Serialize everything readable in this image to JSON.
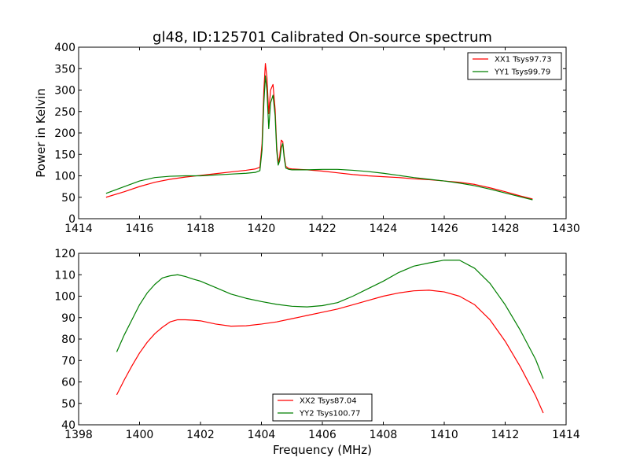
{
  "colors": {
    "xx": "#ff0000",
    "yy": "#007f00"
  },
  "chart_data": [
    {
      "type": "line",
      "title": "gl48, ID:125701 Calibrated On-source spectrum",
      "xlabel": "",
      "ylabel": "Power in Kelvin",
      "xlim": [
        1414,
        1430
      ],
      "ylim": [
        0,
        400
      ],
      "xticks": [
        1414,
        1416,
        1418,
        1420,
        1422,
        1424,
        1426,
        1428,
        1430
      ],
      "yticks": [
        0,
        50,
        100,
        150,
        200,
        250,
        300,
        350,
        400
      ],
      "legend": "top-right",
      "grid": false,
      "series": [
        {
          "name": "XX1 Tsys97.73",
          "color": "#ff0000",
          "x": [
            1414.9,
            1415.5,
            1416.0,
            1416.5,
            1417.0,
            1417.5,
            1418.0,
            1418.5,
            1419.0,
            1419.5,
            1419.8,
            1419.95,
            1420.02,
            1420.08,
            1420.13,
            1420.18,
            1420.24,
            1420.3,
            1420.38,
            1420.45,
            1420.5,
            1420.55,
            1420.6,
            1420.65,
            1420.7,
            1420.75,
            1420.8,
            1420.9,
            1421.0,
            1421.5,
            1422.0,
            1422.5,
            1423.0,
            1423.5,
            1424.0,
            1424.5,
            1425.0,
            1425.5,
            1426.0,
            1426.5,
            1427.0,
            1427.5,
            1428.0,
            1428.5,
            1428.9
          ],
          "y": [
            50,
            63,
            75,
            85,
            92,
            97,
            101,
            105,
            109,
            113,
            116,
            120,
            175,
            300,
            362,
            330,
            245,
            300,
            313,
            255,
            170,
            130,
            145,
            183,
            180,
            145,
            122,
            117,
            116,
            114,
            111,
            107,
            103,
            100,
            98,
            96,
            93,
            91,
            88,
            85,
            80,
            72,
            63,
            53,
            46
          ]
        },
        {
          "name": "YY1 Tsys99.79",
          "color": "#007f00",
          "x": [
            1414.9,
            1415.5,
            1416.0,
            1416.5,
            1417.0,
            1417.5,
            1418.0,
            1418.5,
            1419.0,
            1419.5,
            1419.8,
            1419.95,
            1420.02,
            1420.08,
            1420.13,
            1420.18,
            1420.24,
            1420.3,
            1420.38,
            1420.45,
            1420.5,
            1420.55,
            1420.6,
            1420.65,
            1420.7,
            1420.75,
            1420.8,
            1420.9,
            1421.0,
            1421.5,
            1422.0,
            1422.5,
            1423.0,
            1423.5,
            1424.0,
            1424.5,
            1425.0,
            1425.5,
            1426.0,
            1426.5,
            1427.0,
            1427.5,
            1428.0,
            1428.5,
            1428.9
          ],
          "y": [
            59,
            75,
            88,
            96,
            99,
            100,
            100,
            102,
            104,
            106,
            108,
            112,
            160,
            270,
            333,
            300,
            210,
            270,
            288,
            240,
            160,
            125,
            135,
            165,
            175,
            140,
            118,
            115,
            114,
            114,
            115,
            115,
            113,
            110,
            106,
            101,
            96,
            92,
            88,
            83,
            77,
            69,
            60,
            51,
            44
          ]
        }
      ]
    },
    {
      "type": "line",
      "title": "",
      "xlabel": "Frequency (MHz)",
      "ylabel": "",
      "xlim": [
        1398,
        1414
      ],
      "ylim": [
        40,
        120
      ],
      "xticks": [
        1398,
        1400,
        1402,
        1404,
        1406,
        1408,
        1410,
        1412,
        1414
      ],
      "yticks": [
        40,
        50,
        60,
        70,
        80,
        90,
        100,
        110,
        120
      ],
      "legend": "bottom-center",
      "grid": false,
      "series": [
        {
          "name": "XX2 Tsys87.04",
          "color": "#ff0000",
          "x": [
            1399.25,
            1399.5,
            1399.75,
            1400.0,
            1400.25,
            1400.5,
            1400.75,
            1401.0,
            1401.25,
            1401.5,
            1401.75,
            1402.0,
            1402.5,
            1403.0,
            1403.5,
            1404.0,
            1404.5,
            1405.0,
            1405.5,
            1406.0,
            1406.5,
            1407.0,
            1407.5,
            1408.0,
            1408.5,
            1409.0,
            1409.5,
            1410.0,
            1410.5,
            1411.0,
            1411.5,
            1412.0,
            1412.5,
            1413.0,
            1413.25
          ],
          "y": [
            54,
            61,
            67.5,
            73.5,
            78.5,
            82.5,
            85.5,
            88,
            89,
            89,
            88.8,
            88.5,
            87,
            86,
            86.2,
            87,
            88,
            89.5,
            91,
            92.5,
            94,
            96,
            98,
            100,
            101.5,
            102.5,
            102.8,
            102,
            100,
            96,
            89,
            79,
            67,
            53.5,
            45.5
          ]
        },
        {
          "name": "YY2 Tsys100.77",
          "color": "#007f00",
          "x": [
            1399.25,
            1399.5,
            1399.75,
            1400.0,
            1400.25,
            1400.5,
            1400.75,
            1401.0,
            1401.25,
            1401.5,
            1401.75,
            1402.0,
            1402.5,
            1403.0,
            1403.5,
            1404.0,
            1404.5,
            1405.0,
            1405.5,
            1406.0,
            1406.5,
            1407.0,
            1407.5,
            1408.0,
            1408.5,
            1409.0,
            1409.5,
            1410.0,
            1410.5,
            1411.0,
            1411.5,
            1412.0,
            1412.5,
            1413.0,
            1413.25
          ],
          "y": [
            74,
            82,
            89,
            96,
            101.5,
            105.5,
            108.5,
            109.5,
            110,
            109.2,
            108,
            107,
            104,
            101,
            99,
            97.5,
            96.2,
            95.3,
            95,
            95.6,
            97,
            100,
            103.5,
            107,
            111,
            114,
            115.5,
            116.8,
            116.8,
            113,
            106,
            96,
            84,
            70.5,
            61.5
          ]
        }
      ]
    }
  ]
}
